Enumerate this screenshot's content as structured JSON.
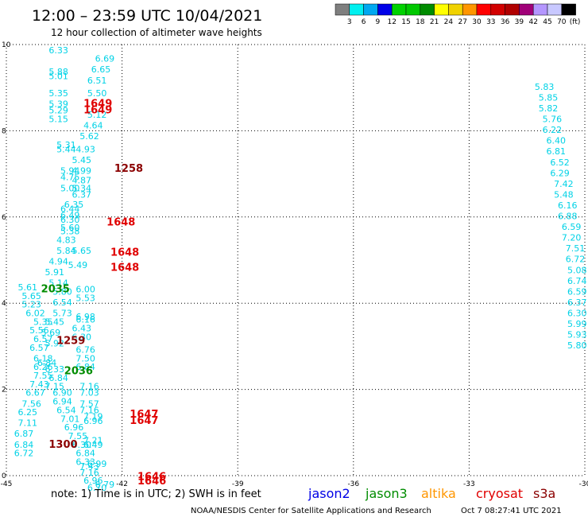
{
  "header": {
    "title": "12:00 – 23:59 UTC 10/04/2021",
    "subtitle": "12 hour collection of altimeter wave heights"
  },
  "color_scale": {
    "labels": [
      "3",
      "6",
      "9",
      "12",
      "15",
      "18",
      "21",
      "24",
      "27",
      "30",
      "33",
      "36",
      "39",
      "42",
      "45",
      "70"
    ],
    "unit": "(ft)",
    "colors": [
      "#7f7f7f",
      "#00f0f0",
      "#00a8f0",
      "#0000e8",
      "#00d200",
      "#00c800",
      "#008c00",
      "#ffff00",
      "#f0d200",
      "#ff9600",
      "#ff0000",
      "#d20000",
      "#b00000",
      "#a00078",
      "#b496ff",
      "#c8c8ff",
      "#000000"
    ]
  },
  "axes": {
    "x_ticks": [
      "-45",
      "-42",
      "-39",
      "-36",
      "-33",
      "-30"
    ],
    "y_ticks": [
      "0",
      "2",
      "4",
      "6",
      "8",
      "10"
    ]
  },
  "chart_data": {
    "type": "scatter",
    "x_range": [
      -45,
      -30
    ],
    "y_range": [
      0,
      10
    ],
    "wave_color": "#00d2e6",
    "waves": [
      {
        "x": -43.9,
        "y": 9.8,
        "t": "6.33"
      },
      {
        "x": -42.7,
        "y": 9.6,
        "t": "6.69"
      },
      {
        "x": -42.8,
        "y": 9.35,
        "t": "6.65"
      },
      {
        "x": -43.9,
        "y": 9.3,
        "t": "5.88"
      },
      {
        "x": -43.9,
        "y": 9.2,
        "t": "5.01"
      },
      {
        "x": -42.9,
        "y": 9.1,
        "t": "6.51"
      },
      {
        "x": -43.9,
        "y": 8.8,
        "t": "5.35"
      },
      {
        "x": -42.9,
        "y": 8.8,
        "t": "5.50"
      },
      {
        "x": -43.9,
        "y": 8.55,
        "t": "5.39"
      },
      {
        "x": -43.9,
        "y": 8.4,
        "t": "5.29"
      },
      {
        "x": -42.9,
        "y": 8.3,
        "t": "5.12"
      },
      {
        "x": -43.9,
        "y": 8.2,
        "t": "5.15"
      },
      {
        "x": -43.0,
        "y": 8.05,
        "t": "4.64"
      },
      {
        "x": -43.1,
        "y": 7.8,
        "t": "5.62"
      },
      {
        "x": -43.7,
        "y": 7.6,
        "t": "5.31"
      },
      {
        "x": -43.7,
        "y": 7.5,
        "t": "5.44"
      },
      {
        "x": -43.2,
        "y": 7.5,
        "t": "4.93"
      },
      {
        "x": -43.3,
        "y": 7.25,
        "t": "5.45"
      },
      {
        "x": -43.6,
        "y": 7.0,
        "t": "5.94"
      },
      {
        "x": -43.3,
        "y": 7.0,
        "t": "4.99"
      },
      {
        "x": -43.6,
        "y": 6.85,
        "t": "4.75"
      },
      {
        "x": -43.3,
        "y": 6.78,
        "t": "4.87"
      },
      {
        "x": -43.6,
        "y": 6.6,
        "t": "5.00"
      },
      {
        "x": -43.3,
        "y": 6.6,
        "t": "5.34"
      },
      {
        "x": -43.3,
        "y": 6.45,
        "t": "6.37"
      },
      {
        "x": -43.5,
        "y": 6.22,
        "t": "6.35"
      },
      {
        "x": -43.6,
        "y": 6.12,
        "t": "6.44"
      },
      {
        "x": -43.6,
        "y": 5.97,
        "t": "6.49"
      },
      {
        "x": -43.6,
        "y": 5.87,
        "t": "6.30"
      },
      {
        "x": -43.6,
        "y": 5.68,
        "t": "5.60"
      },
      {
        "x": -43.6,
        "y": 5.6,
        "t": "5.38"
      },
      {
        "x": -43.7,
        "y": 5.4,
        "t": "4.83"
      },
      {
        "x": -43.7,
        "y": 5.15,
        "t": "5.84"
      },
      {
        "x": -43.3,
        "y": 5.15,
        "t": "5.65"
      },
      {
        "x": -43.9,
        "y": 4.9,
        "t": "4.94"
      },
      {
        "x": -43.4,
        "y": 4.82,
        "t": "5.49"
      },
      {
        "x": -44.0,
        "y": 4.65,
        "t": "5.91"
      },
      {
        "x": -43.9,
        "y": 4.4,
        "t": "5.14"
      },
      {
        "x": -44.7,
        "y": 4.3,
        "t": "5.61"
      },
      {
        "x": -43.2,
        "y": 4.25,
        "t": "6.00"
      },
      {
        "x": -43.8,
        "y": 4.2,
        "t": "5.80"
      },
      {
        "x": -44.6,
        "y": 4.1,
        "t": "5.65"
      },
      {
        "x": -43.2,
        "y": 4.05,
        "t": "5.53"
      },
      {
        "x": -43.8,
        "y": 3.95,
        "t": "6.54"
      },
      {
        "x": -44.6,
        "y": 3.9,
        "t": "5.23"
      },
      {
        "x": -43.8,
        "y": 3.7,
        "t": "5.73"
      },
      {
        "x": -44.5,
        "y": 3.7,
        "t": "6.02"
      },
      {
        "x": -43.2,
        "y": 3.62,
        "t": "6.98"
      },
      {
        "x": -43.2,
        "y": 3.55,
        "t": "6.16"
      },
      {
        "x": -44.3,
        "y": 3.5,
        "t": "5.35"
      },
      {
        "x": -44.0,
        "y": 3.5,
        "t": "5.45"
      },
      {
        "x": -43.3,
        "y": 3.35,
        "t": "6.43"
      },
      {
        "x": -44.4,
        "y": 3.3,
        "t": "5.56"
      },
      {
        "x": -44.1,
        "y": 3.25,
        "t": "5.69"
      },
      {
        "x": -43.3,
        "y": 3.15,
        "t": "6.30"
      },
      {
        "x": -44.3,
        "y": 3.1,
        "t": "6.57"
      },
      {
        "x": -44.0,
        "y": 3.0,
        "t": "5.92"
      },
      {
        "x": -44.4,
        "y": 2.9,
        "t": "6.57"
      },
      {
        "x": -43.2,
        "y": 2.85,
        "t": "6.76"
      },
      {
        "x": -44.3,
        "y": 2.65,
        "t": "6.18"
      },
      {
        "x": -43.2,
        "y": 2.65,
        "t": "7.50"
      },
      {
        "x": -44.2,
        "y": 2.55,
        "t": "6.84"
      },
      {
        "x": -44.3,
        "y": 2.45,
        "t": "6.26"
      },
      {
        "x": -43.2,
        "y": 2.45,
        "t": "6.84"
      },
      {
        "x": -44.0,
        "y": 2.4,
        "t": "6.33"
      },
      {
        "x": -44.3,
        "y": 2.25,
        "t": "7.55"
      },
      {
        "x": -43.9,
        "y": 2.2,
        "t": "6.84"
      },
      {
        "x": -44.4,
        "y": 2.05,
        "t": "7.43"
      },
      {
        "x": -44.0,
        "y": 2.0,
        "t": "7.15"
      },
      {
        "x": -43.1,
        "y": 2.0,
        "t": "7.16"
      },
      {
        "x": -44.5,
        "y": 1.85,
        "t": "6.67"
      },
      {
        "x": -43.8,
        "y": 1.85,
        "t": "6.90"
      },
      {
        "x": -43.1,
        "y": 1.85,
        "t": "7.03"
      },
      {
        "x": -44.6,
        "y": 1.6,
        "t": "7.56"
      },
      {
        "x": -43.8,
        "y": 1.65,
        "t": "6.94"
      },
      {
        "x": -43.1,
        "y": 1.6,
        "t": "7.57"
      },
      {
        "x": -43.7,
        "y": 1.45,
        "t": "6.54"
      },
      {
        "x": -43.1,
        "y": 1.45,
        "t": "7.16"
      },
      {
        "x": -44.7,
        "y": 1.4,
        "t": "6.25"
      },
      {
        "x": -43.6,
        "y": 1.25,
        "t": "7.01"
      },
      {
        "x": -43.0,
        "y": 1.3,
        "t": "7.19"
      },
      {
        "x": -43.0,
        "y": 1.2,
        "t": "6.96"
      },
      {
        "x": -44.7,
        "y": 1.15,
        "t": "7.11"
      },
      {
        "x": -43.5,
        "y": 1.05,
        "t": "6.96"
      },
      {
        "x": -44.8,
        "y": 0.9,
        "t": "6.87"
      },
      {
        "x": -43.4,
        "y": 0.85,
        "t": "7.55"
      },
      {
        "x": -43.0,
        "y": 0.75,
        "t": "7.21"
      },
      {
        "x": -44.8,
        "y": 0.65,
        "t": "6.84"
      },
      {
        "x": -43.3,
        "y": 0.65,
        "t": "6.30"
      },
      {
        "x": -43.0,
        "y": 0.65,
        "t": "6.49"
      },
      {
        "x": -44.8,
        "y": 0.45,
        "t": "6.72"
      },
      {
        "x": -43.2,
        "y": 0.45,
        "t": "6.84"
      },
      {
        "x": -43.2,
        "y": 0.25,
        "t": "6.33"
      },
      {
        "x": -42.9,
        "y": 0.2,
        "t": "6.99"
      },
      {
        "x": -43.1,
        "y": 0.15,
        "t": "7.43"
      },
      {
        "x": -43.1,
        "y": 0.0,
        "t": "7.16"
      },
      {
        "x": -43.0,
        "y": -0.18,
        "t": "6.96"
      },
      {
        "x": -42.7,
        "y": -0.28,
        "t": "6.79"
      },
      {
        "x": -42.9,
        "y": -0.35,
        "t": "6.70"
      },
      {
        "x": -31.3,
        "y": 8.95,
        "t": "5.83"
      },
      {
        "x": -31.2,
        "y": 8.7,
        "t": "5.85"
      },
      {
        "x": -31.2,
        "y": 8.45,
        "t": "5.82"
      },
      {
        "x": -31.1,
        "y": 8.2,
        "t": "5.76"
      },
      {
        "x": -31.1,
        "y": 7.95,
        "t": "6.22"
      },
      {
        "x": -31.0,
        "y": 7.7,
        "t": "6.40"
      },
      {
        "x": -31.0,
        "y": 7.45,
        "t": "6.81"
      },
      {
        "x": -30.9,
        "y": 7.2,
        "t": "6.52"
      },
      {
        "x": -30.9,
        "y": 6.95,
        "t": "6.29"
      },
      {
        "x": -30.8,
        "y": 6.7,
        "t": "7.42"
      },
      {
        "x": -30.8,
        "y": 6.45,
        "t": "5.48"
      },
      {
        "x": -30.7,
        "y": 6.2,
        "t": "6.16"
      },
      {
        "x": -30.7,
        "y": 5.95,
        "t": "6.88"
      },
      {
        "x": -30.6,
        "y": 5.7,
        "t": "6.59"
      },
      {
        "x": -30.6,
        "y": 5.45,
        "t": "7.20"
      },
      {
        "x": -30.5,
        "y": 5.2,
        "t": "7.51"
      },
      {
        "x": -30.5,
        "y": 4.95,
        "t": "6.72"
      },
      {
        "x": -30.4,
        "y": 4.7,
        "t": "5.08"
      },
      {
        "x": -30.4,
        "y": 4.45,
        "t": "6.74"
      },
      {
        "x": -30.35,
        "y": 4.2,
        "t": "6.59"
      },
      {
        "x": -30.3,
        "y": 3.95,
        "t": "6.37"
      },
      {
        "x": -30.25,
        "y": 3.7,
        "t": "6.30"
      },
      {
        "x": -30.2,
        "y": 3.45,
        "t": "5.99"
      },
      {
        "x": -30.15,
        "y": 3.2,
        "t": "5.93"
      },
      {
        "x": -30.1,
        "y": 2.95,
        "t": "5.80"
      }
    ],
    "times": [
      {
        "x": -43.0,
        "y": 8.55,
        "t": "1649",
        "c": "#e00000"
      },
      {
        "x": -43.0,
        "y": 8.4,
        "t": "1649",
        "c": "#e00000"
      },
      {
        "x": -42.2,
        "y": 7.05,
        "t": "1258",
        "c": "#8b0000"
      },
      {
        "x": -42.4,
        "y": 5.8,
        "t": "1648",
        "c": "#e00000"
      },
      {
        "x": -42.3,
        "y": 5.1,
        "t": "1648",
        "c": "#e00000"
      },
      {
        "x": -42.3,
        "y": 4.75,
        "t": "1648",
        "c": "#e00000"
      },
      {
        "x": -44.1,
        "y": 4.25,
        "t": "2035",
        "c": "#008c00"
      },
      {
        "x": -43.7,
        "y": 3.05,
        "t": "1259",
        "c": "#8b0000"
      },
      {
        "x": -43.5,
        "y": 2.35,
        "t": "2036",
        "c": "#008c00"
      },
      {
        "x": -41.8,
        "y": 1.35,
        "t": "1647",
        "c": "#e00000"
      },
      {
        "x": -41.8,
        "y": 1.2,
        "t": "1647",
        "c": "#e00000"
      },
      {
        "x": -43.9,
        "y": 0.65,
        "t": "1300",
        "c": "#8b0000"
      },
      {
        "x": -41.6,
        "y": -0.1,
        "t": "1646",
        "c": "#e00000"
      },
      {
        "x": -41.6,
        "y": -0.2,
        "t": "1646",
        "c": "#e00000"
      }
    ]
  },
  "legend": {
    "note": "note:  1) Time is in UTC; 2) SWH is in feet",
    "satellites": [
      {
        "name": "jason2",
        "color": "#0000e6"
      },
      {
        "name": "jason3",
        "color": "#008c00"
      },
      {
        "name": "altika",
        "color": "#ff9600"
      },
      {
        "name": "cryosat",
        "color": "#e00000"
      },
      {
        "name": "s3a",
        "color": "#8b0000"
      }
    ]
  },
  "footer": {
    "credit": "NOAA/NESDIS Center for Satellite Applications and Research",
    "timestamp": "Oct  7 08:27:41 UTC 2021"
  }
}
